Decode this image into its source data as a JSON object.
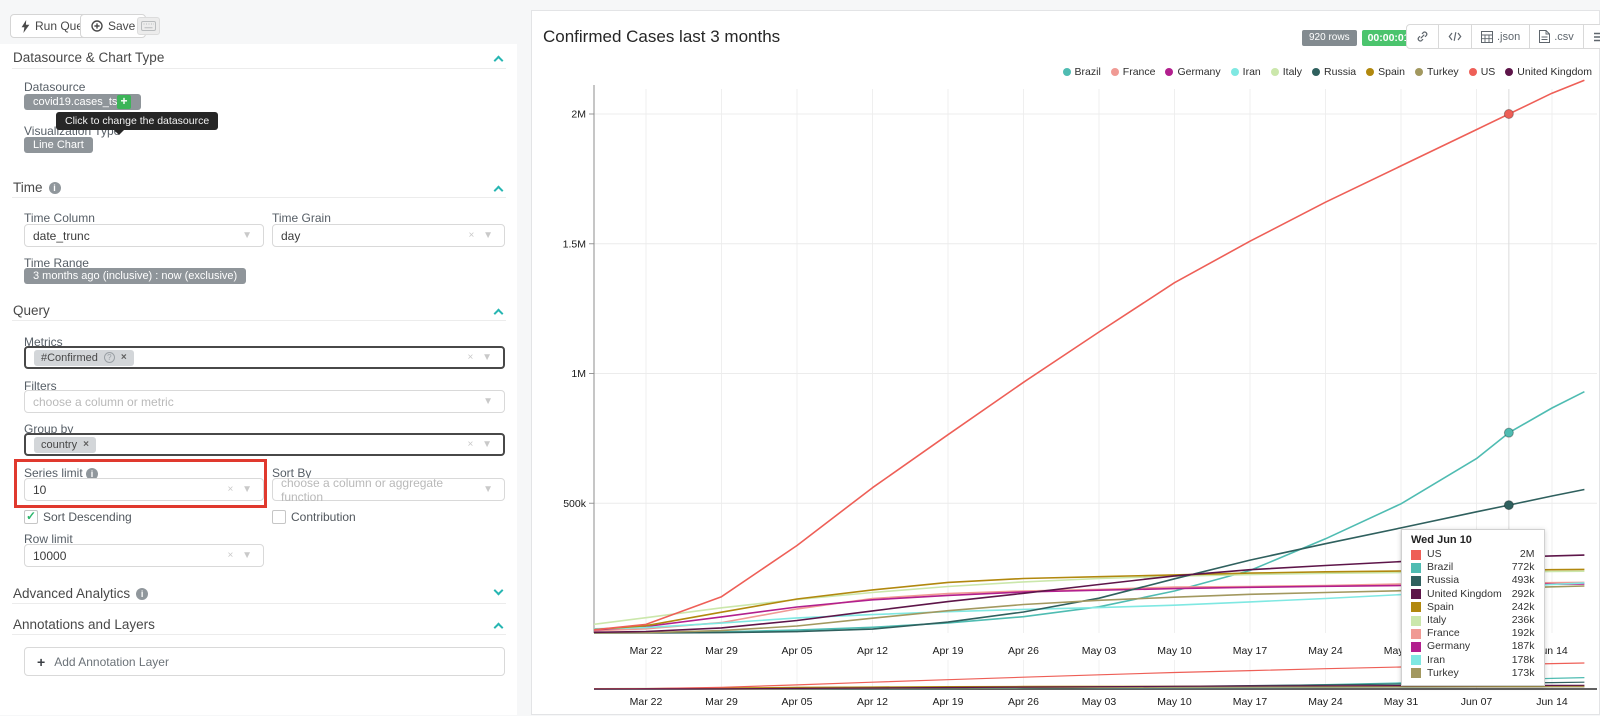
{
  "toolbar": {
    "run_query_label": "Run Query",
    "save_label": "Save",
    "keyboard_icon": "keyboard-shortcuts"
  },
  "panel": {
    "datasource": {
      "title": "Datasource & Chart Type",
      "datasource_label": "Datasource",
      "datasource_value": "covid19.cases_ts",
      "tooltip": "Click to change the datasource",
      "viz_label": "Visualization Type",
      "viz_value": "Line Chart"
    },
    "time": {
      "title": "Time",
      "column_label": "Time Column",
      "column_value": "date_trunc",
      "grain_label": "Time Grain",
      "grain_value": "day",
      "range_label": "Time Range",
      "range_value": "3 months ago (inclusive) : now (exclusive)"
    },
    "query": {
      "title": "Query",
      "metrics_label": "Metrics",
      "metric_chip": "#Confirmed",
      "filters_label": "Filters",
      "filters_placeholder": "choose a column or metric",
      "groupby_label": "Group by",
      "groupby_chip": "country",
      "series_limit_label": "Series limit",
      "series_limit_value": "10",
      "sortby_label": "Sort By",
      "sortby_placeholder": "choose a column or aggregate function",
      "sort_desc_label": "Sort Descending",
      "sort_desc_checked": true,
      "contribution_label": "Contribution",
      "contribution_checked": false,
      "row_limit_label": "Row limit",
      "row_limit_value": "10000"
    },
    "advanced": {
      "title": "Advanced Analytics"
    },
    "annotations": {
      "title": "Annotations and Layers",
      "add_label": "Add Annotation Layer"
    }
  },
  "chart_header": {
    "title": "Confirmed Cases last 3 months",
    "rows_badge": "920 rows",
    "duration_badge": "00:00:01.77",
    "json_label": ".json",
    "csv_label": ".csv"
  },
  "chart_data": {
    "type": "line",
    "title": "Confirmed Cases last 3 months",
    "legend_position": "top-right",
    "grid": true,
    "has_context_brush": true,
    "y_ticks": [
      {
        "label": "500k",
        "value_thousands": 500
      },
      {
        "label": "1M",
        "value_thousands": 1000
      },
      {
        "label": "1.5M",
        "value_thousands": 1500
      },
      {
        "label": "2M",
        "value_thousands": 2000
      }
    ],
    "ylim_thousands": [
      0,
      2150
    ],
    "x_tick_labels": [
      "Mar 22",
      "Mar 29",
      "Apr 05",
      "Apr 12",
      "Apr 19",
      "Apr 26",
      "May 03",
      "May 10",
      "May 17",
      "May 24",
      "May 31",
      "Jun 07",
      "Jun 14"
    ],
    "x_tick_days": [
      7,
      14,
      21,
      28,
      35,
      42,
      49,
      56,
      63,
      70,
      77,
      84,
      91
    ],
    "dates": [
      "Mar 15",
      "Mar 22",
      "Mar 29",
      "Apr 05",
      "Apr 12",
      "Apr 19",
      "Apr 26",
      "May 03",
      "May 10",
      "May 17",
      "May 24",
      "May 31",
      "Jun 07",
      "Jun 10",
      "Jun 14",
      "Jun 17"
    ],
    "day_offsets": [
      0,
      7,
      14,
      21,
      28,
      35,
      42,
      49,
      56,
      63,
      70,
      77,
      84,
      87,
      91,
      94
    ],
    "hover_date": "Wed Jun 10",
    "hover_day_offset": 87,
    "series": [
      {
        "name": "Brazil",
        "color": "#4fbcb2",
        "values_thousands": [
          0.2,
          1.6,
          4.3,
          11,
          22,
          39,
          63,
          101,
          162,
          241,
          363,
          498,
          672,
          772,
          867,
          930
        ]
      },
      {
        "name": "France",
        "color": "#f09a94",
        "values_thousands": [
          5.4,
          16,
          40,
          93,
          133,
          152,
          162,
          168,
          177,
          179,
          183,
          189,
          191,
          192,
          194,
          195
        ]
      },
      {
        "name": "Germany",
        "color": "#b21f8e",
        "values_thousands": [
          5.8,
          25,
          62,
          100,
          128,
          145,
          158,
          165,
          171,
          176,
          180,
          183,
          186,
          187,
          188,
          189
        ]
      },
      {
        "name": "Iran",
        "color": "#7fe8e2",
        "values_thousands": [
          14,
          21,
          38,
          58,
          71,
          82,
          91,
          98,
          107,
          120,
          133,
          148,
          171,
          178,
          187,
          193
        ]
      },
      {
        "name": "Italy",
        "color": "#cbe7ab",
        "values_thousands": [
          22,
          59,
          97,
          129,
          156,
          179,
          197,
          210,
          219,
          225,
          230,
          233,
          235,
          236,
          237,
          238
        ]
      },
      {
        "name": "Russia",
        "color": "#2f605e",
        "values_thousands": [
          0.1,
          0.4,
          1.5,
          5.4,
          15,
          42,
          81,
          134,
          209,
          281,
          344,
          405,
          467,
          493,
          528,
          553
        ]
      },
      {
        "name": "Spain",
        "color": "#b1880e",
        "values_thousands": [
          6,
          28,
          80,
          131,
          166,
          195,
          210,
          217,
          224,
          231,
          236,
          239,
          241,
          242,
          244,
          245
        ]
      },
      {
        "name": "Turkey",
        "color": "#a2985f",
        "values_thousands": [
          0.1,
          1.2,
          9.2,
          27,
          57,
          86,
          110,
          126,
          138,
          149,
          156,
          163,
          170,
          173,
          178,
          181
        ]
      },
      {
        "name": "US",
        "color": "#ee5f57",
        "values_thousands": [
          3,
          33,
          140,
          337,
          560,
          764,
          966,
          1160,
          1350,
          1510,
          1660,
          1800,
          1940,
          2000,
          2080,
          2130
        ]
      },
      {
        "name": "United Kingdom",
        "color": "#5d1549",
        "values_thousands": [
          1.1,
          5.7,
          19.5,
          48,
          85,
          121,
          153,
          187,
          220,
          244,
          260,
          275,
          287,
          292,
          297,
          300
        ]
      }
    ],
    "tooltip": {
      "date": "Wed Jun 10",
      "rows": [
        {
          "name": "US",
          "value": "2M"
        },
        {
          "name": "Brazil",
          "value": "772k"
        },
        {
          "name": "Russia",
          "value": "493k"
        },
        {
          "name": "United Kingdom",
          "value": "292k"
        },
        {
          "name": "Spain",
          "value": "242k"
        },
        {
          "name": "Italy",
          "value": "236k"
        },
        {
          "name": "France",
          "value": "192k"
        },
        {
          "name": "Germany",
          "value": "187k"
        },
        {
          "name": "Iran",
          "value": "178k"
        },
        {
          "name": "Turkey",
          "value": "173k"
        }
      ]
    }
  }
}
